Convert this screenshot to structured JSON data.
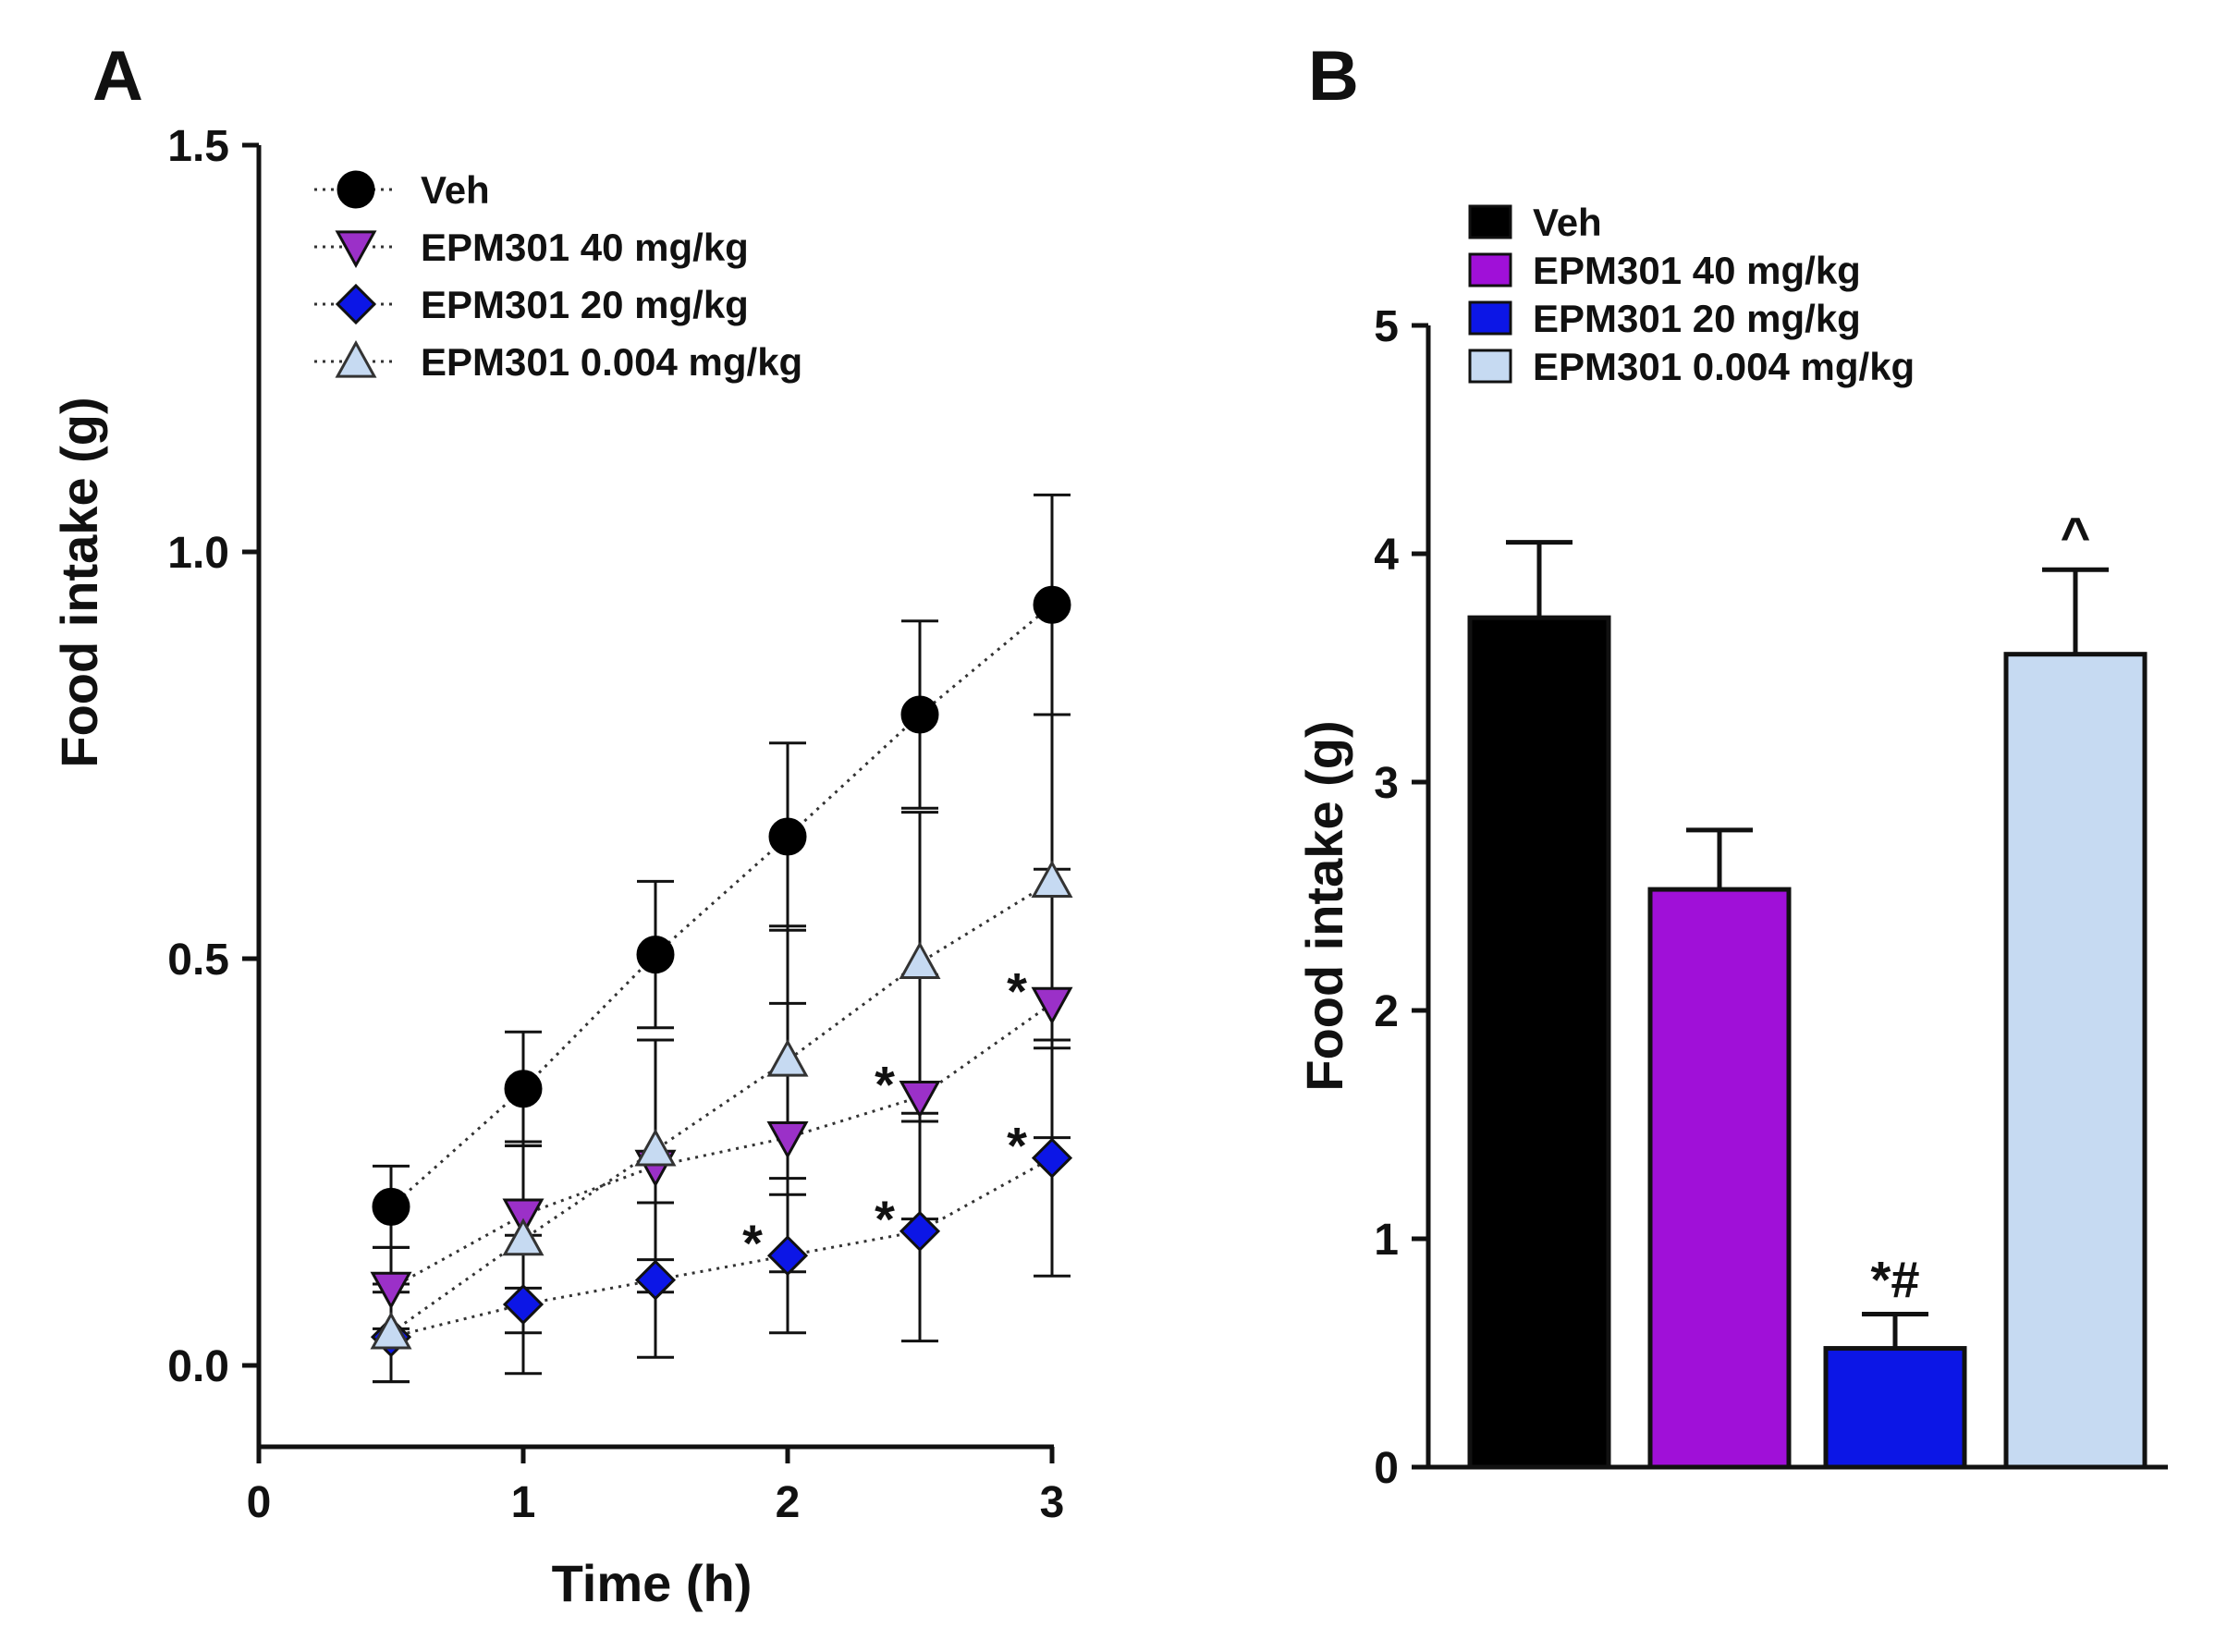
{
  "panel_a": {
    "letter": "A",
    "x_tick_labels": [
      "0",
      "1",
      "2",
      "3"
    ],
    "y_tick_labels": [
      "0.0",
      "0.5",
      "1.0",
      "1.5"
    ]
  },
  "panel_b": {
    "letter": "B",
    "y_tick_labels": [
      "0",
      "1",
      "2",
      "3",
      "4",
      "5"
    ]
  },
  "colors": {
    "veh": "#000000",
    "epm40_line": "#9b30c8",
    "epm40_bar": "#a010d8",
    "epm20": "#0c16e6",
    "epm0004": "#c6daf2",
    "axis": "#111111"
  },
  "chart_data": [
    {
      "type": "line",
      "panel": "A",
      "title": "",
      "xlabel": "Time (h)",
      "ylabel": "Food intake (g)",
      "xlim": [
        0,
        3
      ],
      "ylim": [
        -0.1,
        1.5
      ],
      "x_ticks": [
        0,
        1,
        2,
        3
      ],
      "y_ticks": [
        0.0,
        0.5,
        1.0,
        1.5
      ],
      "x": [
        0.5,
        1,
        1.5,
        2,
        2.5,
        3
      ],
      "legend_position": "top-left",
      "series": [
        {
          "name": "Veh",
          "marker": "circle",
          "values": [
            0.195,
            0.34,
            0.505,
            0.65,
            0.8,
            0.935
          ],
          "err": [
            0.05,
            0.07,
            0.09,
            0.115,
            0.115,
            0.135
          ],
          "annotations": [
            "",
            "",
            "",
            "",
            "",
            ""
          ]
        },
        {
          "name": "EPM301 40 mg/kg",
          "marker": "triangle-down",
          "values": [
            0.095,
            0.185,
            0.245,
            0.28,
            0.33,
            0.445
          ],
          "err": [
            0.05,
            0.09,
            0.155,
            0.165,
            0.15,
            0.165
          ],
          "annotations": [
            "",
            "",
            "",
            "",
            "*",
            "*"
          ]
        },
        {
          "name": "EPM301 20 mg/kg",
          "marker": "diamond",
          "values": [
            0.035,
            0.075,
            0.105,
            0.135,
            0.165,
            0.255
          ],
          "err": [
            0.055,
            0.085,
            0.095,
            0.095,
            0.135,
            0.145
          ],
          "annotations": [
            "",
            "",
            "",
            "*",
            "*",
            "*"
          ]
        },
        {
          "name": "EPM301 0.004 mg/kg",
          "marker": "triangle-up",
          "values": [
            0.04,
            0.155,
            0.265,
            0.375,
            0.495,
            0.595
          ],
          "err": [
            0.06,
            0.115,
            0.135,
            0.165,
            0.185,
            0.205
          ],
          "annotations": [
            "",
            "",
            "",
            "",
            "",
            ""
          ]
        }
      ]
    },
    {
      "type": "bar",
      "panel": "B",
      "title": "",
      "xlabel": "",
      "ylabel": "Food intake (g)",
      "ylim": [
        0,
        5
      ],
      "y_ticks": [
        0,
        1,
        2,
        3,
        4,
        5
      ],
      "legend_position": "top-left",
      "categories": [
        "Veh",
        "EPM301 40 mg/kg",
        "EPM301 20 mg/kg",
        "EPM301 0.004 mg/kg"
      ],
      "values": [
        3.72,
        2.53,
        0.52,
        3.56
      ],
      "err": [
        0.33,
        0.26,
        0.15,
        0.37
      ],
      "annotations": [
        "",
        "",
        "*#",
        "^"
      ]
    }
  ]
}
